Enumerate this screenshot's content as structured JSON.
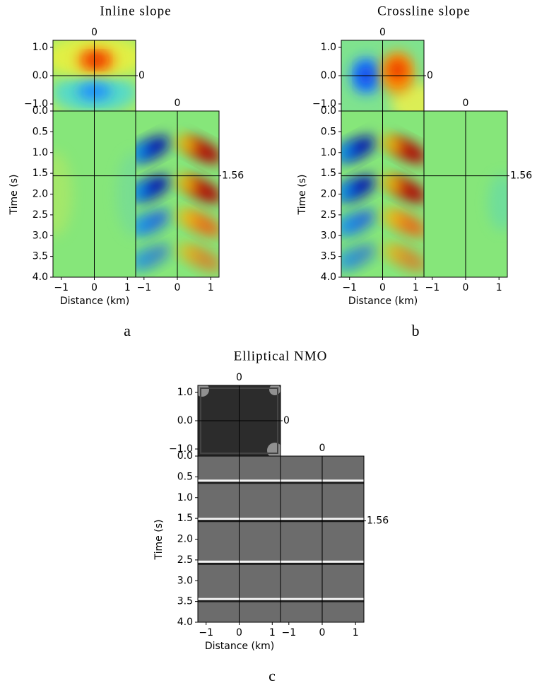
{
  "panels": [
    {
      "title": "Inline slope",
      "letter": "a",
      "ylabel": "Time (s)",
      "xlabel": "Distance (km)",
      "time_range": [
        0,
        4
      ],
      "distance_range": [
        -1.25,
        1.25
      ],
      "time_ticks": [
        {
          "value": 0,
          "label": "0.0"
        },
        {
          "value": 0.5,
          "label": "0.5"
        },
        {
          "value": 1,
          "label": "1.0"
        },
        {
          "value": 1.5,
          "label": "1.5"
        },
        {
          "value": 2,
          "label": "2.0"
        },
        {
          "value": 2.5,
          "label": "2.5"
        },
        {
          "value": 3,
          "label": "3.0"
        },
        {
          "value": 3.5,
          "label": "3.5"
        },
        {
          "value": 4,
          "label": "4.0"
        }
      ],
      "crossline_ticks": [
        {
          "value": 1,
          "label": "1.0"
        },
        {
          "value": 0,
          "label": "0.0"
        },
        {
          "value": -1,
          "label": "−1.0"
        }
      ],
      "distance_ticks": [
        {
          "value": -1,
          "label": "−1"
        },
        0,
        1
      ],
      "slices": {
        "inline": 0,
        "crossline": 0,
        "time": 1.56
      }
    },
    {
      "title": "Crossline slope",
      "letter": "b",
      "ylabel": "Time (s)",
      "xlabel": "Distance (km)",
      "time_range": [
        0,
        4
      ],
      "distance_range": [
        -1.25,
        1.25
      ],
      "time_ticks": [
        {
          "value": 0,
          "label": "0.0"
        },
        {
          "value": 0.5,
          "label": "0.5"
        },
        {
          "value": 1,
          "label": "1.0"
        },
        {
          "value": 1.5,
          "label": "1.5"
        },
        {
          "value": 2,
          "label": "2.0"
        },
        {
          "value": 2.5,
          "label": "2.5"
        },
        {
          "value": 3,
          "label": "3.0"
        },
        {
          "value": 3.5,
          "label": "3.5"
        },
        {
          "value": 4,
          "label": "4.0"
        }
      ],
      "crossline_ticks": [
        {
          "value": 1,
          "label": "1.0"
        },
        {
          "value": 0,
          "label": "0.0"
        },
        {
          "value": -1,
          "label": "−1.0"
        }
      ],
      "distance_ticks": [
        {
          "value": -1,
          "label": "−1"
        },
        0,
        1
      ],
      "slices": {
        "inline": 0,
        "crossline": 0,
        "time": 1.56
      }
    },
    {
      "title": "Elliptical NMO",
      "letter": "c",
      "ylabel": "Time (s)",
      "xlabel": "Distance (km)",
      "time_range": [
        0,
        4
      ],
      "distance_range": [
        -1.25,
        1.25
      ],
      "time_ticks": [
        {
          "value": 0,
          "label": "0.0"
        },
        {
          "value": 0.5,
          "label": "0.5"
        },
        {
          "value": 1,
          "label": "1.0"
        },
        {
          "value": 1.5,
          "label": "1.5"
        },
        {
          "value": 2,
          "label": "2.0"
        },
        {
          "value": 2.5,
          "label": "2.5"
        },
        {
          "value": 3,
          "label": "3.0"
        },
        {
          "value": 3.5,
          "label": "3.5"
        },
        {
          "value": 4,
          "label": "4.0"
        }
      ],
      "crossline_ticks": [
        {
          "value": 1,
          "label": "1.0"
        },
        {
          "value": 0,
          "label": "0.0"
        },
        {
          "value": -1,
          "label": "−1.0"
        }
      ],
      "distance_ticks": [
        {
          "value": -1,
          "label": "−1"
        },
        0,
        1
      ],
      "slices": {
        "inline": 0,
        "crossline": 0,
        "time": 1.56
      }
    }
  ]
}
